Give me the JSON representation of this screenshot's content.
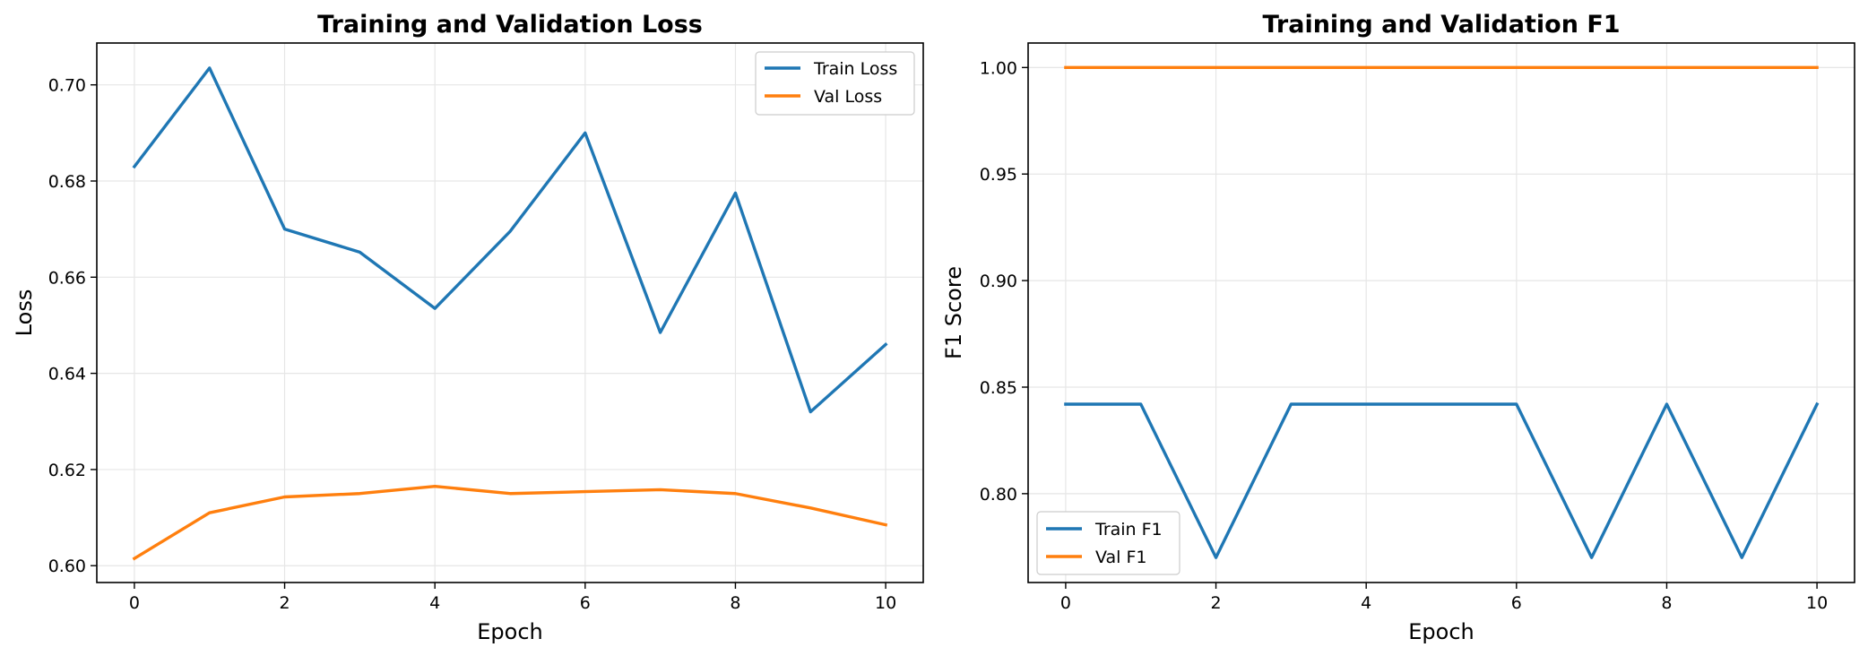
{
  "chart_data": [
    {
      "type": "line",
      "title": "Training and Validation Loss",
      "xlabel": "Epoch",
      "ylabel": "Loss",
      "x": [
        0,
        1,
        2,
        3,
        4,
        5,
        6,
        7,
        8,
        9,
        10
      ],
      "xlim": [
        -0.5,
        10.5
      ],
      "ylim": [
        0.5965,
        0.7087
      ],
      "xticks": [
        0,
        2,
        4,
        6,
        8,
        10
      ],
      "xtick_labels": [
        "0",
        "2",
        "4",
        "6",
        "8",
        "10"
      ],
      "yticks": [
        0.6,
        0.62,
        0.64,
        0.66,
        0.68,
        0.7
      ],
      "ytick_labels": [
        "0.60",
        "0.62",
        "0.64",
        "0.66",
        "0.68",
        "0.70"
      ],
      "grid": true,
      "legend_position": "top-right",
      "series": [
        {
          "name": "Train Loss",
          "color": "#1f77b4",
          "values": [
            0.683,
            0.7035,
            0.67,
            0.6652,
            0.6535,
            0.6695,
            0.69,
            0.6485,
            0.6775,
            0.632,
            0.646
          ]
        },
        {
          "name": "Val Loss",
          "color": "#ff7f0e",
          "values": [
            0.6015,
            0.611,
            0.6143,
            0.615,
            0.6165,
            0.615,
            0.6154,
            0.6158,
            0.615,
            0.612,
            0.6085
          ]
        }
      ]
    },
    {
      "type": "line",
      "title": "Training and Validation F1",
      "xlabel": "Epoch",
      "ylabel": "F1 Score",
      "x": [
        0,
        1,
        2,
        3,
        4,
        5,
        6,
        7,
        8,
        9,
        10
      ],
      "xlim": [
        -0.5,
        10.5
      ],
      "ylim": [
        0.7583,
        1.0115
      ],
      "xticks": [
        0,
        2,
        4,
        6,
        8,
        10
      ],
      "xtick_labels": [
        "0",
        "2",
        "4",
        "6",
        "8",
        "10"
      ],
      "yticks": [
        0.8,
        0.85,
        0.9,
        0.95,
        1.0
      ],
      "ytick_labels": [
        "0.80",
        "0.85",
        "0.90",
        "0.95",
        "1.00"
      ],
      "grid": true,
      "legend_position": "bottom-left",
      "series": [
        {
          "name": "Train F1",
          "color": "#1f77b4",
          "values": [
            0.842,
            0.842,
            0.77,
            0.842,
            0.842,
            0.842,
            0.842,
            0.77,
            0.842,
            0.77,
            0.842
          ]
        },
        {
          "name": "Val F1",
          "color": "#ff7f0e",
          "values": [
            1.0,
            1.0,
            1.0,
            1.0,
            1.0,
            1.0,
            1.0,
            1.0,
            1.0,
            1.0,
            1.0
          ]
        }
      ]
    }
  ]
}
